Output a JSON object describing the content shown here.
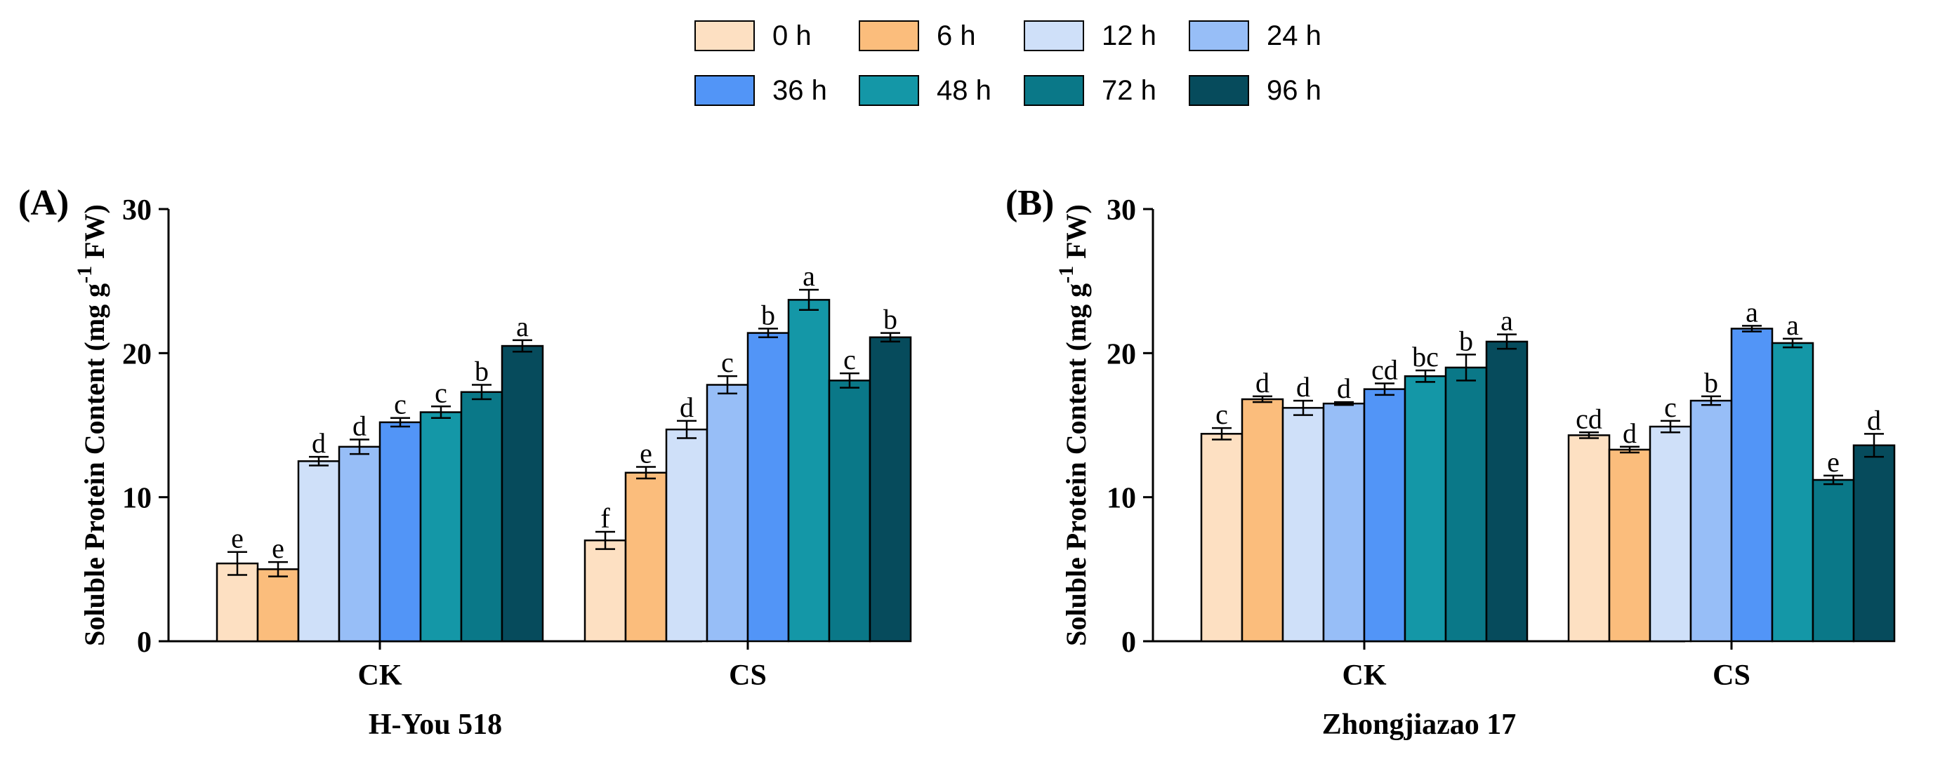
{
  "legend": {
    "entries": [
      "0 h",
      "6 h",
      "12 h",
      "24 h",
      "36 h",
      "48 h",
      "72 h",
      "96 h"
    ],
    "colors": [
      "#fde0c2",
      "#fbbd7c",
      "#cfe0f9",
      "#97bef7",
      "#5295f7",
      "#1497a7",
      "#0a7888",
      "#064b5c"
    ]
  },
  "chart_data": [
    {
      "type": "bar",
      "panel_label": "(A)",
      "title": "",
      "xlabel": "H-You 518",
      "ylabel": "Soluble Protein Content (mg g",
      "ylabel_sup": "-1",
      "ylabel_end": " FW)",
      "ylim": [
        0,
        30
      ],
      "yticks": [
        "0",
        "10",
        "20",
        "30"
      ],
      "categories": [
        "CK",
        "CS"
      ],
      "series": [
        {
          "name": "0 h",
          "values": [
            5.4,
            7.0
          ],
          "errors": [
            0.8,
            0.6
          ],
          "letters": [
            "e",
            "f"
          ]
        },
        {
          "name": "6 h",
          "values": [
            5.0,
            11.7
          ],
          "errors": [
            0.5,
            0.4
          ],
          "letters": [
            "e",
            "e"
          ]
        },
        {
          "name": "12 h",
          "values": [
            12.5,
            14.7
          ],
          "errors": [
            0.3,
            0.6
          ],
          "letters": [
            "d",
            "d"
          ]
        },
        {
          "name": "24 h",
          "values": [
            13.5,
            17.8
          ],
          "errors": [
            0.5,
            0.6
          ],
          "letters": [
            "d",
            "c"
          ]
        },
        {
          "name": "36 h",
          "values": [
            15.2,
            21.4
          ],
          "errors": [
            0.3,
            0.3
          ],
          "letters": [
            "c",
            "b"
          ]
        },
        {
          "name": "48 h",
          "values": [
            15.9,
            23.7
          ],
          "errors": [
            0.4,
            0.7
          ],
          "letters": [
            "c",
            "a"
          ]
        },
        {
          "name": "72 h",
          "values": [
            17.3,
            18.1
          ],
          "errors": [
            0.5,
            0.5
          ],
          "letters": [
            "b",
            "c"
          ]
        },
        {
          "name": "96 h",
          "values": [
            20.5,
            21.1
          ],
          "errors": [
            0.4,
            0.3
          ],
          "letters": [
            "a",
            "b"
          ]
        }
      ]
    },
    {
      "type": "bar",
      "panel_label": "(B)",
      "title": "",
      "xlabel": "Zhongjiazao 17",
      "ylabel": "Soluble Protein Content (mg g",
      "ylabel_sup": "-1",
      "ylabel_end": " FW)",
      "ylim": [
        0,
        30
      ],
      "yticks": [
        "0",
        "10",
        "20",
        "30"
      ],
      "categories": [
        "CK",
        "CS"
      ],
      "series": [
        {
          "name": "0 h",
          "values": [
            14.4,
            14.3
          ],
          "errors": [
            0.4,
            0.2
          ],
          "letters": [
            "c",
            "cd"
          ]
        },
        {
          "name": "6 h",
          "values": [
            16.8,
            13.3
          ],
          "errors": [
            0.2,
            0.2
          ],
          "letters": [
            "d",
            "d"
          ]
        },
        {
          "name": "12 h",
          "values": [
            16.2,
            14.9
          ],
          "errors": [
            0.5,
            0.4
          ],
          "letters": [
            "d",
            "c"
          ]
        },
        {
          "name": "24 h",
          "values": [
            16.5,
            16.7
          ],
          "errors": [
            0.1,
            0.3
          ],
          "letters": [
            "d",
            "b"
          ]
        },
        {
          "name": "36 h",
          "values": [
            17.5,
            21.7
          ],
          "errors": [
            0.4,
            0.2
          ],
          "letters": [
            "cd",
            "a"
          ]
        },
        {
          "name": "48 h",
          "values": [
            18.4,
            20.7
          ],
          "errors": [
            0.4,
            0.3
          ],
          "letters": [
            "bc",
            "a"
          ]
        },
        {
          "name": "72 h",
          "values": [
            19.0,
            11.2
          ],
          "errors": [
            0.9,
            0.3
          ],
          "letters": [
            "b",
            "e"
          ]
        },
        {
          "name": "96 h",
          "values": [
            20.8,
            13.6
          ],
          "errors": [
            0.5,
            0.8
          ],
          "letters": [
            "a",
            "d"
          ]
        }
      ]
    }
  ]
}
